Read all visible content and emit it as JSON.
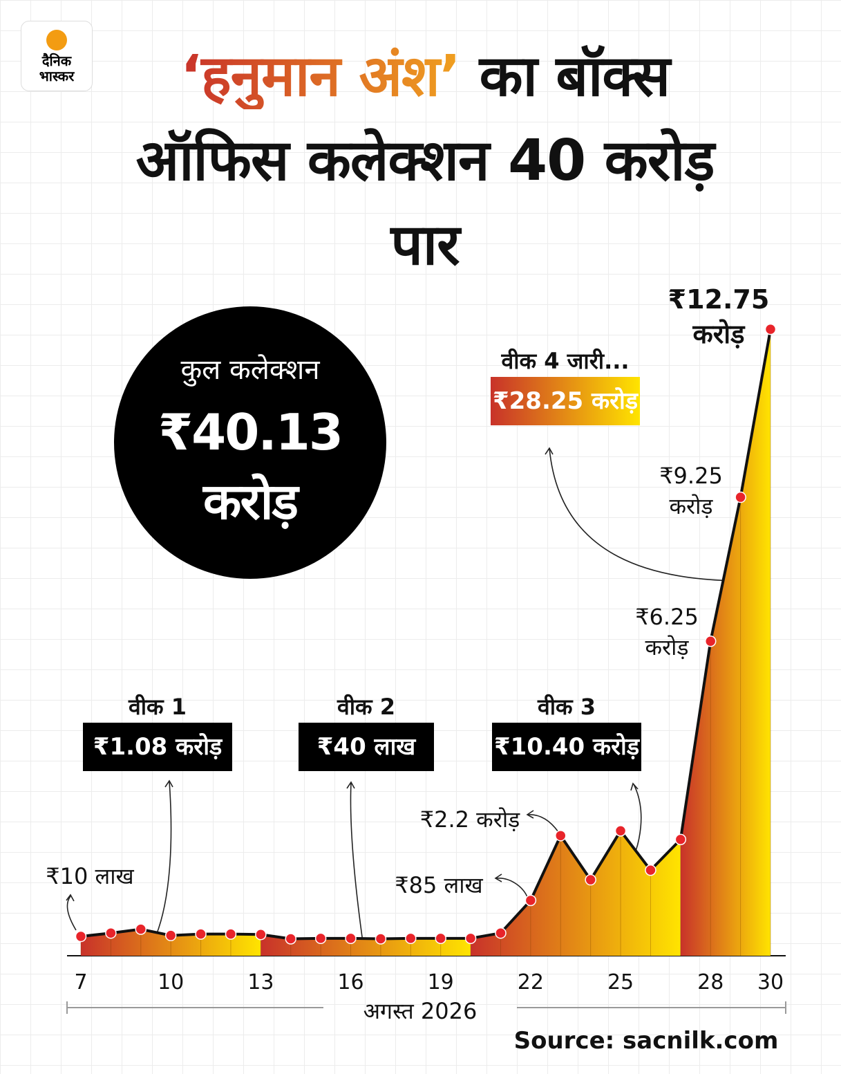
{
  "header": {
    "logo": "दैनिक भास्कर",
    "title_highlight": "‘हनुमान अंश’",
    "title": "का बॉक्स ऑफिस कलेक्शन 40 करोड़ पार"
  },
  "total": {
    "label": "कुल कलेक्शन",
    "value": 40.13,
    "value_label": "₹40.13 करोड़"
  },
  "chart_data": {
    "type": "area",
    "x": [
      7,
      8,
      9,
      10,
      11,
      12,
      13,
      14,
      15,
      16,
      17,
      18,
      19,
      20,
      21,
      22,
      23,
      24,
      25,
      26,
      27,
      28,
      29,
      30
    ],
    "values": [
      0.1,
      0.17,
      0.25,
      0.12,
      0.15,
      0.15,
      0.14,
      0.05,
      0.06,
      0.06,
      0.05,
      0.06,
      0.06,
      0.06,
      0.17,
      0.85,
      2.2,
      1.28,
      2.3,
      1.48,
      2.12,
      6.25,
      9.25,
      12.75
    ],
    "value_labels": [
      "₹10 लाख",
      null,
      null,
      null,
      null,
      null,
      null,
      null,
      null,
      null,
      null,
      null,
      null,
      null,
      null,
      "₹85 लाख",
      "₹2.2 करोड़",
      null,
      null,
      null,
      null,
      "₹6.25 करोड़",
      "₹9.25 करोड़",
      "₹12.75 करोड़"
    ],
    "xlim": [
      7,
      30
    ],
    "xticks": [
      7,
      10,
      13,
      16,
      19,
      22,
      25,
      28,
      30
    ],
    "xlabel": "अगस्त 2026",
    "gradient": [
      "#c8322a",
      "#ffe400"
    ],
    "line_color": "#111111",
    "marker_color": "#e8242a",
    "weeks": [
      {
        "label": "वीक 1",
        "value": 1.08,
        "value_label": "₹1.08 करोड़"
      },
      {
        "label": "वीक 2",
        "value": 0.4,
        "value_label": "₹40 लाख"
      },
      {
        "label": "वीक 3",
        "value": 10.4,
        "value_label": "₹10.40 करोड़"
      },
      {
        "label": "वीक 4 जारी...",
        "value": 28.25,
        "value_label": "₹28.25 करोड़"
      }
    ]
  },
  "source": "Source: sacnilk.com"
}
